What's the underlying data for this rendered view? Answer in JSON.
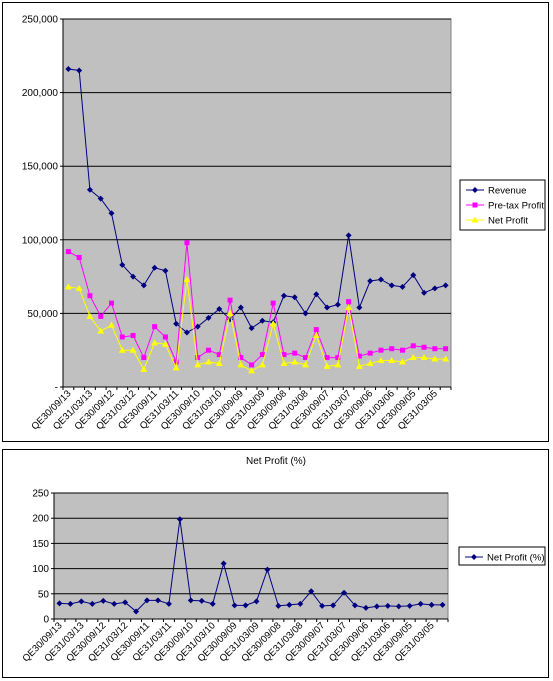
{
  "chart_data": [
    {
      "type": "line",
      "title": "",
      "xlabel": "",
      "ylabel": "",
      "ylim": [
        0,
        250000
      ],
      "yticks": [
        0,
        50000,
        100000,
        150000,
        200000,
        250000
      ],
      "ytick_labels": [
        "-",
        "50,000",
        "100,000",
        "150,000",
        "200,000",
        "250,000"
      ],
      "grid": true,
      "legend_position": "right",
      "plot_bg": "#c0c0c0",
      "x_labels": [
        "QE30/09/13",
        "QE31/03/13",
        "QE30/09/12",
        "QE31/03/12",
        "QE30/09/11",
        "QE31/03/11",
        "QE30/09/10",
        "QE31/03/10",
        "QE30/09/09",
        "QE31/03/09",
        "QE30/09/08",
        "QE31/03/08",
        "QE30/09/07",
        "QE31/03/07",
        "QE30/09/06",
        "QE31/03/06",
        "QE30/09/05",
        "QE31/03/05"
      ],
      "series": [
        {
          "name": "Revenue",
          "color": "#000080",
          "marker": "diamond",
          "values": [
            216000,
            215000,
            134000,
            128000,
            118000,
            83000,
            75000,
            69000,
            81000,
            79000,
            43000,
            37000,
            41000,
            47000,
            53000,
            46000,
            54000,
            40000,
            45000,
            44000,
            62000,
            61000,
            50000,
            63000,
            54000,
            56000,
            103000,
            54000,
            72000,
            73000,
            69000,
            68000,
            76000,
            64000,
            67000,
            69000
          ]
        },
        {
          "name": "Pre-tax Profit",
          "color": "#ff00ff",
          "marker": "square",
          "values": [
            92000,
            88000,
            62000,
            48000,
            57000,
            34000,
            35000,
            20000,
            41000,
            34000,
            17000,
            98000,
            20000,
            25000,
            22000,
            59000,
            20000,
            15000,
            22000,
            57000,
            22000,
            23000,
            20000,
            39000,
            20000,
            20000,
            58000,
            21000,
            23000,
            25000,
            26000,
            25000,
            28000,
            27000,
            26000,
            26000
          ]
        },
        {
          "name": "Net Profit",
          "color": "#ffff00",
          "marker": "triangle",
          "values": [
            68000,
            67000,
            48000,
            38000,
            42000,
            25000,
            25000,
            12000,
            30000,
            29000,
            13000,
            73000,
            15000,
            17000,
            16000,
            50000,
            15000,
            11000,
            15000,
            43000,
            16000,
            17000,
            15000,
            35000,
            14000,
            15000,
            54000,
            14000,
            16000,
            18000,
            18000,
            17000,
            20000,
            20000,
            19000,
            19000
          ]
        }
      ]
    },
    {
      "type": "line",
      "title": "Net Profit (%)",
      "xlabel": "",
      "ylabel": "",
      "ylim": [
        0,
        250
      ],
      "yticks": [
        0,
        50,
        100,
        150,
        200,
        250
      ],
      "ytick_labels": [
        "0",
        "50",
        "100",
        "150",
        "200",
        "250"
      ],
      "grid": true,
      "legend_position": "right",
      "plot_bg": "#c0c0c0",
      "x_labels": [
        "QE30/09/13",
        "QE31/03/13",
        "QE30/09/12",
        "QE31/03/12",
        "QE30/09/11",
        "QE31/03/11",
        "QE30/09/10",
        "QE31/03/10",
        "QE30/09/09",
        "QE31/03/09",
        "QE30/09/08",
        "QE31/03/08",
        "QE30/09/07",
        "QE31/03/07",
        "QE30/09/06",
        "QE31/03/06",
        "QE30/09/05",
        "QE31/03/05"
      ],
      "series": [
        {
          "name": "Net Profit (%)",
          "color": "#000080",
          "marker": "diamond",
          "values": [
            31,
            30,
            35,
            30,
            36,
            30,
            33,
            15,
            37,
            37,
            30,
            198,
            37,
            36,
            30,
            110,
            27,
            27,
            35,
            98,
            26,
            28,
            30,
            55,
            26,
            27,
            52,
            27,
            22,
            25,
            26,
            25,
            26,
            30,
            28,
            28
          ]
        }
      ]
    }
  ]
}
